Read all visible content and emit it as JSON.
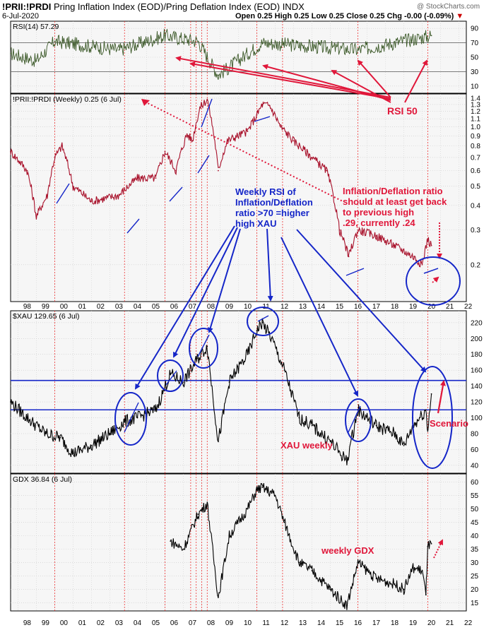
{
  "header": {
    "symbol": "!PRII:!PRDI",
    "name": "Pring Inflation Index (EOD)/Pring Deflation Index (EOD)",
    "exchange": "INDX",
    "date": "6-Jul-2020",
    "ohlc": "Open 0.25  High 0.25  Low 0.25  Close 0.25  Chg -0.00 (-0.09%)",
    "down_marker": "▼",
    "copyright": "@ StockCharts.com"
  },
  "colors": {
    "rsi_line": "#3d5a2a",
    "ratio_line": "#a8102a",
    "price_line": "#000000",
    "annot_red": "#e0173a",
    "annot_blue": "#1526c8",
    "grid": "#c9c9c9",
    "bg": "#f6f6f6"
  },
  "x_axis": {
    "year_labels": [
      "98",
      "99",
      "00",
      "01",
      "02",
      "03",
      "04",
      "05",
      "06",
      "07",
      "08",
      "09",
      "10",
      "11",
      "12",
      "13",
      "14",
      "15",
      "16",
      "17",
      "18",
      "19",
      "20",
      "21",
      "22"
    ]
  },
  "chart_data": [
    {
      "type": "line",
      "title": "RSI(14) 57.29",
      "yticks": [
        10,
        30,
        50,
        70,
        90
      ],
      "ylim": [
        0,
        100
      ],
      "reference_lines": [
        30,
        70
      ],
      "x": [
        1997.6,
        1999.0,
        2000.0,
        2003.5,
        2006.0,
        2007.8,
        2008.9,
        2011.3,
        2016.5,
        2020.5
      ],
      "series": [
        {
          "values": [
            55,
            45,
            72,
            60,
            80,
            72,
            25,
            70,
            60,
            80
          ]
        }
      ]
    },
    {
      "type": "line",
      "title": "!PRII:!PRDI (Weekly) 0.25 (6 Jul)",
      "yticks": [
        0.2,
        0.3,
        0.4,
        0.5,
        0.6,
        0.7,
        0.8,
        0.9,
        1.0,
        1.1,
        1.2,
        1.3,
        1.4
      ],
      "ylim": [
        0.13,
        1.47
      ],
      "x": [
        1997.6,
        1998.5,
        1999.0,
        1999.6,
        2000.0,
        2000.4,
        2001.0,
        2002.0,
        2003.5,
        2004.5,
        2005.5,
        2006.0,
        2006.6,
        2007.2,
        2007.5,
        2007.9,
        2008.3,
        2008.9,
        2009.4,
        2010.5,
        2011.0,
        2011.3,
        2011.7,
        2012.3,
        2013.0,
        2014.0,
        2014.8,
        2015.5,
        2016.0,
        2016.5,
        2017.5,
        2018.5,
        2019.5,
        2020.0,
        2020.3,
        2020.5
      ],
      "series": [
        {
          "values": [
            0.75,
            0.6,
            0.35,
            0.45,
            0.7,
            0.8,
            0.5,
            0.42,
            0.45,
            0.55,
            0.55,
            0.75,
            0.6,
            0.92,
            0.85,
            1.25,
            1.38,
            0.6,
            0.85,
            0.95,
            1.15,
            1.3,
            1.28,
            1.0,
            0.85,
            0.7,
            0.6,
            0.3,
            0.22,
            0.3,
            0.28,
            0.25,
            0.22,
            0.2,
            0.27,
            0.25
          ]
        }
      ]
    },
    {
      "type": "line",
      "title": "$XAU 129.65 (6 Jul)",
      "yticks": [
        40,
        60,
        80,
        100,
        120,
        140,
        160,
        180,
        200,
        220
      ],
      "ylim": [
        30,
        235
      ],
      "reference_lines": [
        110,
        147
      ],
      "x": [
        1997.6,
        1998.5,
        1999.5,
        2000.3,
        2001.0,
        2002.0,
        2003.0,
        2003.8,
        2004.5,
        2005.5,
        2006.3,
        2007.0,
        2007.8,
        2008.3,
        2008.9,
        2009.5,
        2010.5,
        2011.0,
        2011.3,
        2011.8,
        2012.5,
        2013.3,
        2014.0,
        2015.0,
        2015.9,
        2016.5,
        2017.5,
        2018.5,
        2019.0,
        2019.5,
        2020.2,
        2020.3,
        2020.5
      ],
      "series": [
        {
          "values": [
            120,
            100,
            80,
            75,
            55,
            65,
            80,
            95,
            100,
            110,
            155,
            145,
            175,
            190,
            70,
            145,
            180,
            210,
            220,
            200,
            160,
            100,
            90,
            70,
            45,
            110,
            90,
            80,
            65,
            90,
            110,
            85,
            130
          ]
        }
      ]
    },
    {
      "type": "line",
      "title": "GDX 36.84 (6 Jul)",
      "yticks": [
        15,
        20,
        25,
        30,
        35,
        40,
        45,
        50,
        55,
        60
      ],
      "ylim": [
        12,
        63
      ],
      "x": [
        2006.3,
        2007.0,
        2007.8,
        2008.3,
        2008.9,
        2009.5,
        2010.5,
        2011.0,
        2011.3,
        2012.0,
        2012.5,
        2013.3,
        2014.0,
        2015.0,
        2015.9,
        2016.5,
        2017.5,
        2018.5,
        2019.0,
        2019.5,
        2020.0,
        2020.2,
        2020.3,
        2020.5
      ],
      "series": [
        {
          "values": [
            38,
            35,
            48,
            52,
            17,
            40,
            50,
            57,
            58,
            55,
            45,
            30,
            27,
            20,
            14,
            30,
            24,
            22,
            20,
            28,
            27,
            18,
            36,
            37
          ]
        }
      ]
    }
  ],
  "annotations": {
    "rsi50": "RSI 50",
    "ratio_text": [
      "Inflation/Deflation ratio",
      "should at least get back",
      "to previous high",
      ".29, currently .24"
    ],
    "weekly_rsi": [
      "Weekly RSI of",
      "Inflation/Deflation",
      "ratio >70 =higher",
      "high XAU"
    ],
    "scenario": "Scenario",
    "xau_weekly": "XAU weekly",
    "weekly_gdx": "weekly GDX"
  }
}
